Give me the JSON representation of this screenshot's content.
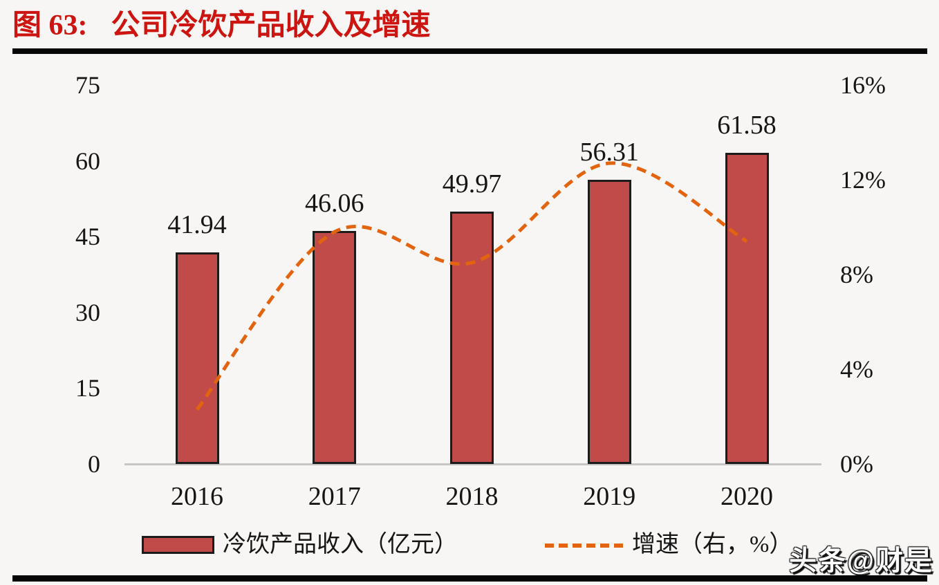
{
  "page": {
    "title_prefix": "图 63:",
    "title": "公司冷饮产品收入及增速",
    "watermark": "头条@财是"
  },
  "colors": {
    "title_red": "#cc1510",
    "bar_fill": "#c14b48",
    "bar_border": "#1c1c1c",
    "line_orange": "#e2640e",
    "axis_baseline": "#c6c6c6",
    "text": "#151515",
    "background": "#f8f6f4",
    "divider_black": "#060606"
  },
  "chart_data": {
    "type": "bar+line",
    "title": "公司冷饮产品收入及增速",
    "categories": [
      "2016",
      "2017",
      "2018",
      "2019",
      "2020"
    ],
    "series": [
      {
        "name": "冷饮产品收入（亿元）",
        "type": "bar",
        "axis": "left",
        "values": [
          41.94,
          46.06,
          49.97,
          56.31,
          61.58
        ],
        "data_labels": [
          "41.94",
          "46.06",
          "49.97",
          "56.31",
          "61.58"
        ]
      },
      {
        "name": "增速（右，%）",
        "type": "line",
        "axis": "right",
        "style": "dashed-smooth",
        "values": [
          2.3,
          9.8,
          8.5,
          12.7,
          9.4
        ]
      }
    ],
    "left_axis": {
      "min": 0,
      "max": 75,
      "tick_labels": [
        "75",
        "60",
        "45",
        "30",
        "15",
        "0"
      ]
    },
    "right_axis": {
      "min": 0,
      "max": 16,
      "tick_labels": [
        "16%",
        "12%",
        "8%",
        "4%",
        "0%"
      ]
    },
    "legend": [
      {
        "label": "冷饮产品收入（亿元）",
        "swatch": "bar"
      },
      {
        "label": "增速（右，%）",
        "swatch": "dashed-line"
      }
    ],
    "grid": "none",
    "legend_position": "bottom"
  }
}
